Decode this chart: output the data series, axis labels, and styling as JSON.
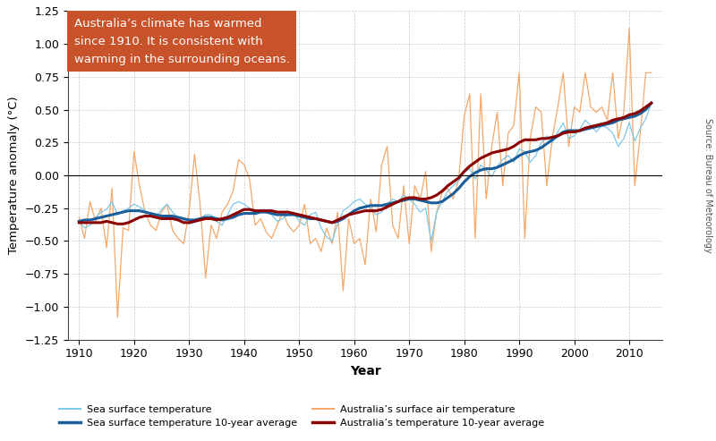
{
  "years": [
    1910,
    1911,
    1912,
    1913,
    1914,
    1915,
    1916,
    1917,
    1918,
    1919,
    1920,
    1921,
    1922,
    1923,
    1924,
    1925,
    1926,
    1927,
    1928,
    1929,
    1930,
    1931,
    1932,
    1933,
    1934,
    1935,
    1936,
    1937,
    1938,
    1939,
    1940,
    1941,
    1942,
    1943,
    1944,
    1945,
    1946,
    1947,
    1948,
    1949,
    1950,
    1951,
    1952,
    1953,
    1954,
    1955,
    1956,
    1957,
    1958,
    1959,
    1960,
    1961,
    1962,
    1963,
    1964,
    1965,
    1966,
    1967,
    1968,
    1969,
    1970,
    1971,
    1972,
    1973,
    1974,
    1975,
    1976,
    1977,
    1978,
    1979,
    1980,
    1981,
    1982,
    1983,
    1984,
    1985,
    1986,
    1987,
    1988,
    1989,
    1990,
    1991,
    1992,
    1993,
    1994,
    1995,
    1996,
    1997,
    1998,
    1999,
    2000,
    2001,
    2002,
    2003,
    2004,
    2005,
    2006,
    2007,
    2008,
    2009,
    2010,
    2011,
    2012,
    2013,
    2014
  ],
  "sst": [
    -0.35,
    -0.4,
    -0.38,
    -0.32,
    -0.28,
    -0.26,
    -0.2,
    -0.3,
    -0.27,
    -0.25,
    -0.22,
    -0.24,
    -0.27,
    -0.3,
    -0.32,
    -0.26,
    -0.22,
    -0.28,
    -0.32,
    -0.34,
    -0.37,
    -0.36,
    -0.33,
    -0.3,
    -0.3,
    -0.35,
    -0.38,
    -0.3,
    -0.22,
    -0.2,
    -0.22,
    -0.25,
    -0.3,
    -0.28,
    -0.27,
    -0.3,
    -0.35,
    -0.33,
    -0.3,
    -0.28,
    -0.35,
    -0.38,
    -0.3,
    -0.28,
    -0.4,
    -0.47,
    -0.5,
    -0.37,
    -0.27,
    -0.24,
    -0.2,
    -0.18,
    -0.22,
    -0.25,
    -0.3,
    -0.28,
    -0.22,
    -0.18,
    -0.2,
    -0.15,
    -0.18,
    -0.22,
    -0.28,
    -0.25,
    -0.5,
    -0.28,
    -0.2,
    -0.12,
    -0.08,
    -0.04,
    0.02,
    0.05,
    -0.03,
    0.08,
    0.04,
    -0.01,
    0.07,
    0.12,
    0.15,
    0.1,
    0.2,
    0.18,
    0.1,
    0.15,
    0.25,
    0.3,
    0.25,
    0.33,
    0.4,
    0.28,
    0.3,
    0.35,
    0.42,
    0.38,
    0.33,
    0.38,
    0.36,
    0.32,
    0.22,
    0.28,
    0.4,
    0.26,
    0.36,
    0.43,
    0.55
  ],
  "sst_10yr": [
    -0.35,
    -0.34,
    -0.34,
    -0.33,
    -0.32,
    -0.31,
    -0.3,
    -0.29,
    -0.28,
    -0.27,
    -0.27,
    -0.27,
    -0.28,
    -0.29,
    -0.3,
    -0.31,
    -0.31,
    -0.31,
    -0.32,
    -0.33,
    -0.34,
    -0.34,
    -0.33,
    -0.32,
    -0.32,
    -0.33,
    -0.34,
    -0.33,
    -0.32,
    -0.3,
    -0.29,
    -0.29,
    -0.29,
    -0.28,
    -0.28,
    -0.29,
    -0.3,
    -0.3,
    -0.3,
    -0.3,
    -0.31,
    -0.32,
    -0.33,
    -0.33,
    -0.34,
    -0.35,
    -0.36,
    -0.35,
    -0.33,
    -0.3,
    -0.27,
    -0.25,
    -0.24,
    -0.23,
    -0.23,
    -0.23,
    -0.22,
    -0.21,
    -0.2,
    -0.19,
    -0.18,
    -0.18,
    -0.19,
    -0.2,
    -0.21,
    -0.21,
    -0.2,
    -0.17,
    -0.14,
    -0.1,
    -0.05,
    -0.01,
    0.02,
    0.04,
    0.05,
    0.05,
    0.06,
    0.08,
    0.1,
    0.12,
    0.15,
    0.17,
    0.18,
    0.19,
    0.21,
    0.24,
    0.27,
    0.3,
    0.33,
    0.34,
    0.34,
    0.34,
    0.35,
    0.36,
    0.37,
    0.38,
    0.39,
    0.4,
    0.42,
    0.43,
    0.44,
    0.45,
    0.47,
    0.5,
    0.55
  ],
  "air": [
    -0.32,
    -0.48,
    -0.2,
    -0.35,
    -0.25,
    -0.55,
    -0.1,
    -1.08,
    -0.4,
    -0.42,
    0.18,
    -0.08,
    -0.28,
    -0.38,
    -0.42,
    -0.28,
    -0.22,
    -0.42,
    -0.48,
    -0.52,
    -0.28,
    0.16,
    -0.22,
    -0.78,
    -0.38,
    -0.48,
    -0.28,
    -0.22,
    -0.12,
    0.12,
    0.08,
    -0.03,
    -0.38,
    -0.33,
    -0.43,
    -0.48,
    -0.38,
    -0.28,
    -0.38,
    -0.43,
    -0.38,
    -0.22,
    -0.52,
    -0.48,
    -0.58,
    -0.4,
    -0.52,
    -0.28,
    -0.88,
    -0.33,
    -0.52,
    -0.48,
    -0.68,
    -0.18,
    -0.43,
    0.08,
    0.22,
    -0.38,
    -0.48,
    -0.08,
    -0.52,
    -0.08,
    -0.18,
    0.03,
    -0.58,
    -0.28,
    -0.13,
    -0.1,
    -0.18,
    -0.03,
    0.45,
    0.62,
    -0.48,
    0.62,
    -0.18,
    0.22,
    0.48,
    -0.08,
    0.32,
    0.38,
    0.78,
    -0.48,
    0.28,
    0.52,
    0.48,
    -0.08,
    0.28,
    0.52,
    0.78,
    0.22,
    0.52,
    0.48,
    0.78,
    0.52,
    0.48,
    0.52,
    0.42,
    0.78,
    0.28,
    0.48,
    1.12,
    -0.08,
    0.32,
    0.78,
    0.78
  ],
  "air_10yr": [
    -0.36,
    -0.36,
    -0.36,
    -0.36,
    -0.36,
    -0.35,
    -0.36,
    -0.37,
    -0.37,
    -0.36,
    -0.34,
    -0.32,
    -0.31,
    -0.31,
    -0.32,
    -0.33,
    -0.33,
    -0.33,
    -0.34,
    -0.36,
    -0.36,
    -0.35,
    -0.34,
    -0.33,
    -0.33,
    -0.34,
    -0.33,
    -0.32,
    -0.3,
    -0.28,
    -0.26,
    -0.26,
    -0.27,
    -0.27,
    -0.27,
    -0.27,
    -0.28,
    -0.28,
    -0.28,
    -0.29,
    -0.3,
    -0.31,
    -0.32,
    -0.33,
    -0.34,
    -0.35,
    -0.36,
    -0.34,
    -0.32,
    -0.3,
    -0.29,
    -0.28,
    -0.27,
    -0.27,
    -0.27,
    -0.26,
    -0.24,
    -0.22,
    -0.2,
    -0.18,
    -0.17,
    -0.17,
    -0.18,
    -0.18,
    -0.17,
    -0.15,
    -0.12,
    -0.08,
    -0.05,
    -0.02,
    0.03,
    0.07,
    0.1,
    0.13,
    0.15,
    0.17,
    0.18,
    0.19,
    0.2,
    0.22,
    0.25,
    0.27,
    0.27,
    0.27,
    0.28,
    0.28,
    0.29,
    0.3,
    0.32,
    0.33,
    0.33,
    0.34,
    0.36,
    0.37,
    0.38,
    0.39,
    0.4,
    0.42,
    0.43,
    0.44,
    0.46,
    0.47,
    0.49,
    0.52,
    0.55
  ],
  "sst_color": "#7EC8E8",
  "sst_10yr_color": "#1A5F9A",
  "air_color": "#F5A86A",
  "air_10yr_color": "#8B0000",
  "annotation_text": "Australia’s climate has warmed\nsince 1910. It is consistent with\nwarming in the surrounding oceans.",
  "annotation_bg": "#C8522A",
  "annotation_text_color": "#FFFFFF",
  "ylabel": "Temperature anomaly (°C)",
  "xlabel": "Year",
  "source_text": "Source: Bureau of Meteorology",
  "ylim": [
    -1.25,
    1.25
  ],
  "xlim": [
    1908,
    2016
  ],
  "yticks": [
    -1.25,
    -1.0,
    -0.75,
    -0.5,
    -0.25,
    0.0,
    0.25,
    0.5,
    0.75,
    1.0,
    1.25
  ],
  "xticks": [
    1910,
    1920,
    1930,
    1940,
    1950,
    1960,
    1970,
    1980,
    1990,
    2000,
    2010
  ],
  "legend_labels": [
    "Sea surface temperature",
    "Sea surface temperature 10-year average",
    "Australia’s surface air temperature",
    "Australia’s temperature 10-year average"
  ],
  "bg_color": "#FFFFFF",
  "grid_color": "#BBBBBB"
}
